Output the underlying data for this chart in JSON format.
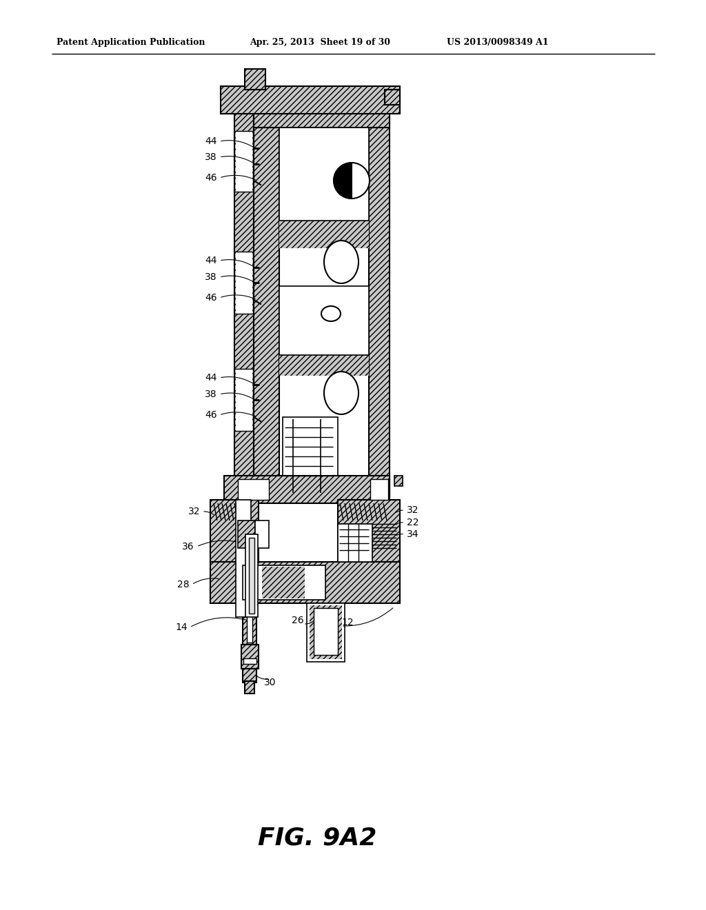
{
  "header_left": "Patent Application Publication",
  "header_mid": "Apr. 25, 2013  Sheet 19 of 30",
  "header_right": "US 2013/0098349 A1",
  "figure_label": "FIG. 9A2",
  "bg_color": "#ffffff"
}
